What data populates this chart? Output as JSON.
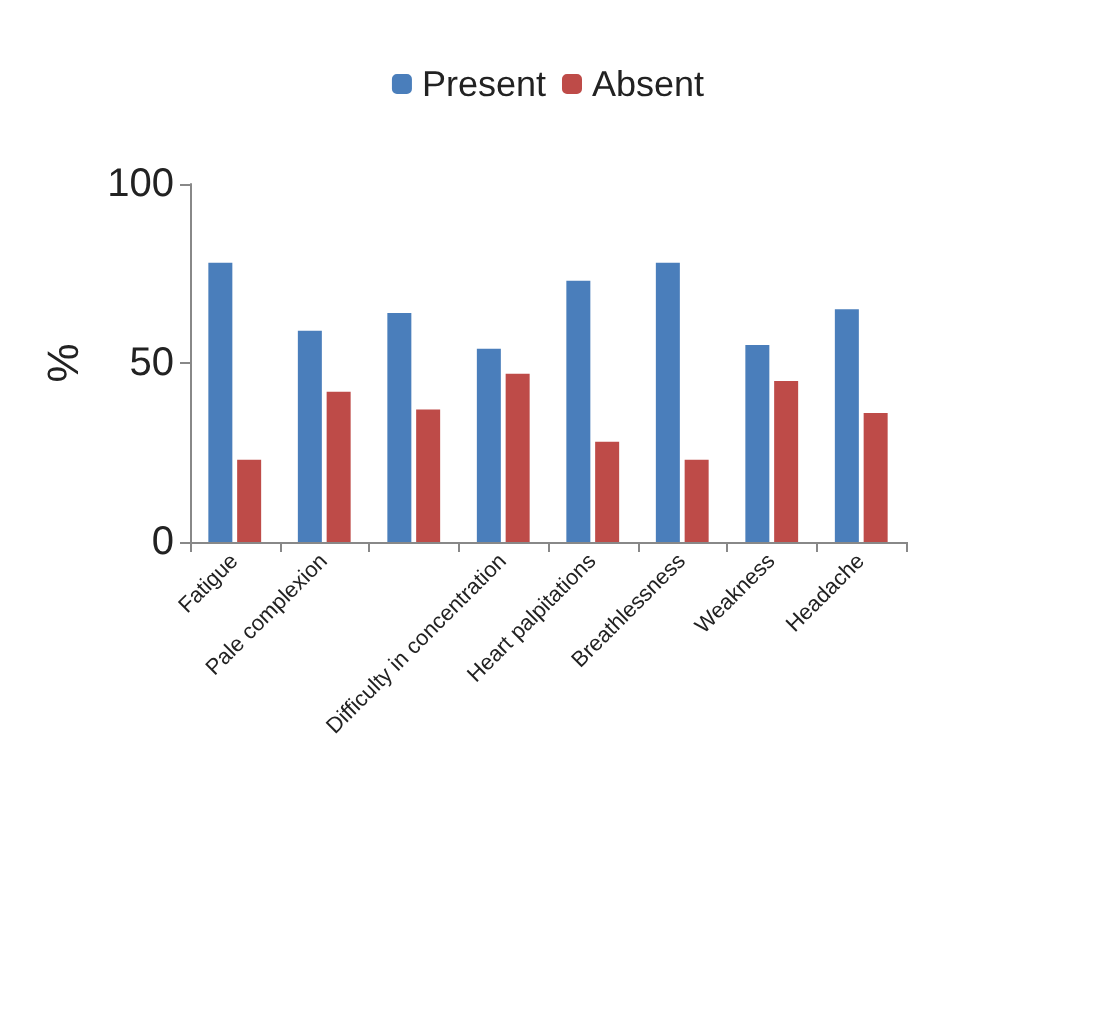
{
  "chart_data": {
    "type": "bar",
    "ylabel": "%",
    "categories": [
      "Fatigue",
      "Pale complexion",
      null,
      "Difficulty in concentration",
      "Heart palpitations",
      "Breathlessness",
      "Weakness",
      "Headache"
    ],
    "series": [
      {
        "name": "Present",
        "color": "#4a7ebb",
        "values": [
          78,
          59,
          64,
          54,
          73,
          78,
          55,
          65
        ]
      },
      {
        "name": "Absent",
        "color": "#be4b48",
        "values": [
          23,
          42,
          37,
          47,
          28,
          23,
          45,
          36
        ]
      }
    ],
    "ylim": [
      0,
      100
    ],
    "yticks": [
      0,
      50,
      100
    ],
    "grid": false,
    "legend": "top"
  }
}
